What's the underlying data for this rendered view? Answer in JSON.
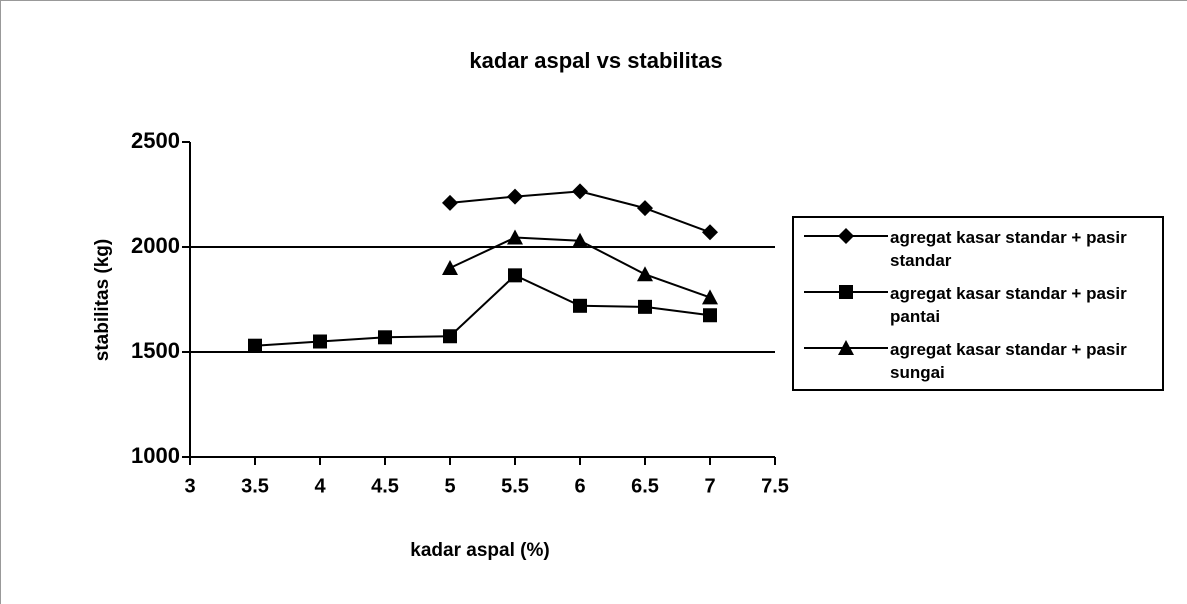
{
  "chart_data": {
    "type": "line",
    "title": "kadar aspal vs stabilitas",
    "x_label": "kadar aspal (%)",
    "y_label": "stabilitas (kg)",
    "xlim": [
      3,
      7.5
    ],
    "xticks": [
      3,
      3.5,
      4,
      4.5,
      5,
      5.5,
      6,
      6.5,
      7,
      7.5
    ],
    "ylim": [
      1000,
      2500
    ],
    "yticks": [
      1000,
      1500,
      2000,
      2500
    ],
    "grid": true,
    "legend": "right",
    "series": [
      {
        "name": "agregat kasar standar + pasir standar",
        "color": "#000000",
        "marker": "diamond",
        "x": [
          5,
          5.5,
          6,
          6.5,
          7
        ],
        "values": [
          2210,
          2240,
          2265,
          2185,
          2070
        ]
      },
      {
        "name": "agregat kasar standar + pasir pantai",
        "color": "#000000",
        "marker": "square",
        "x": [
          3.5,
          4,
          4.5,
          5,
          5.5,
          6,
          6.5,
          7
        ],
        "values": [
          1530,
          1550,
          1570,
          1575,
          1865,
          1720,
          1715,
          1675
        ]
      },
      {
        "name": "agregat kasar standar + pasir sungai",
        "color": "#000000",
        "marker": "triangle",
        "x": [
          5,
          5.5,
          6,
          6.5,
          7
        ],
        "values": [
          1900,
          2045,
          2030,
          1870,
          1760
        ]
      }
    ]
  }
}
